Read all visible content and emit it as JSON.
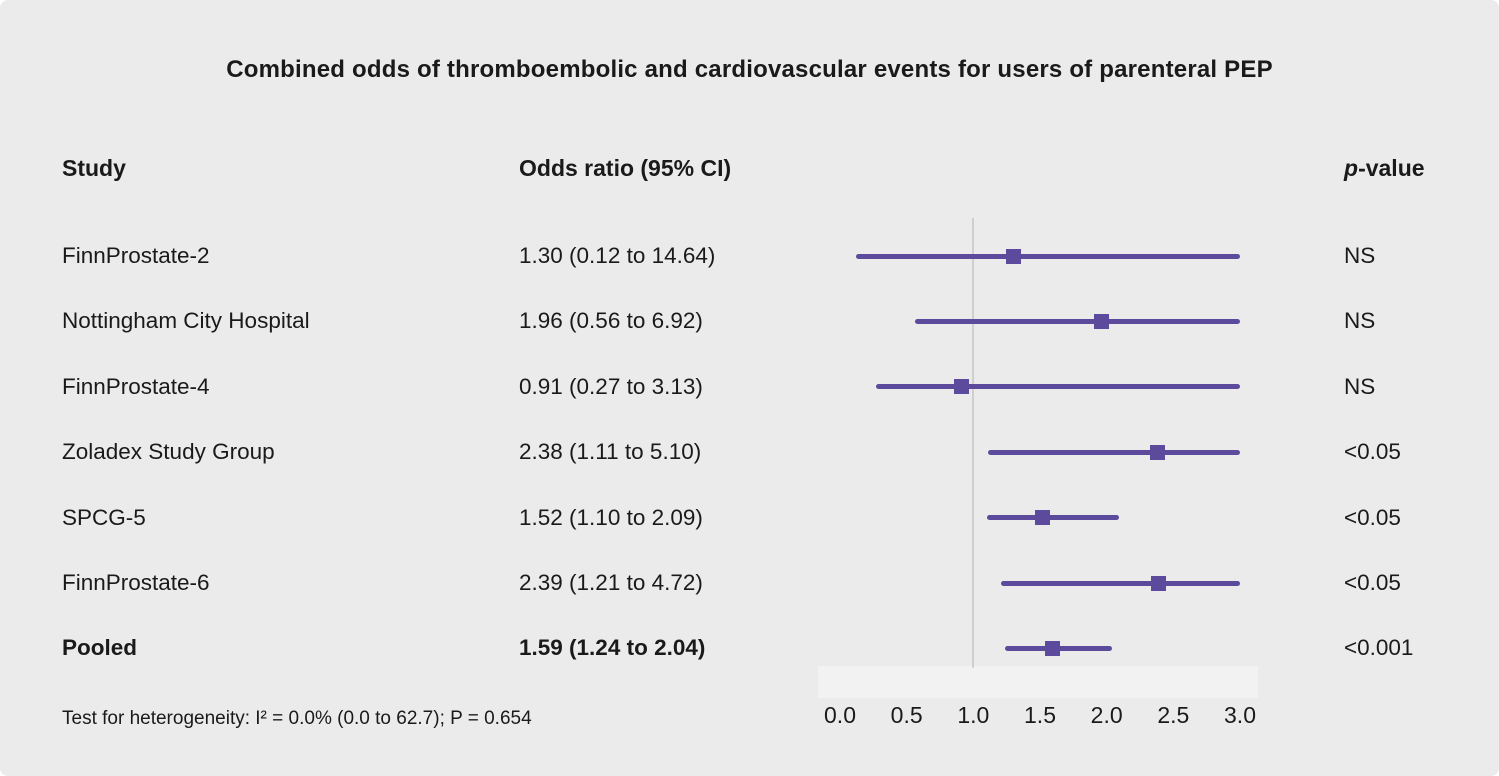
{
  "title": "Combined odds of thromboembolic and cardiovascular events for users of parenteral PEP",
  "columns": {
    "study": "Study",
    "odds_ratio": "Odds ratio (95% CI)",
    "p_italic": "p",
    "p_suffix": "-value"
  },
  "footer": "Test for heterogeneity: I² = 0.0% (0.0 to 62.7); P = 0.654",
  "colors": {
    "marker": "#5c4b9c",
    "ci_line": "#5c4b9c",
    "reference_line": "#cfcfcf",
    "background": "#ebebeb"
  },
  "chart_data": {
    "type": "forest",
    "title": "Combined odds of thromboembolic and cardiovascular events for users of parenteral PEP",
    "xlim": [
      0,
      3
    ],
    "reference_line": 1.0,
    "tick_labels": [
      "0.0",
      "0.5",
      "1.0",
      "1.5",
      "2.0",
      "2.5",
      "3.0"
    ],
    "rows": [
      {
        "study": "FinnProstate-2",
        "or_text": "1.30 (0.12 to 14.64)",
        "or": 1.3,
        "ci_low": 0.12,
        "ci_high": 14.64,
        "p": "NS",
        "bold": false
      },
      {
        "study": "Nottingham City Hospital",
        "or_text": "1.96 (0.56 to 6.92)",
        "or": 1.96,
        "ci_low": 0.56,
        "ci_high": 6.92,
        "p": "NS",
        "bold": false
      },
      {
        "study": "FinnProstate-4",
        "or_text": "0.91 (0.27 to 3.13)",
        "or": 0.91,
        "ci_low": 0.27,
        "ci_high": 3.13,
        "p": "NS",
        "bold": false
      },
      {
        "study": "Zoladex Study Group",
        "or_text": "2.38 (1.11 to 5.10)",
        "or": 2.38,
        "ci_low": 1.11,
        "ci_high": 5.1,
        "p": "<0.05",
        "bold": false
      },
      {
        "study": "SPCG-5",
        "or_text": "1.52 (1.10 to 2.09)",
        "or": 1.52,
        "ci_low": 1.1,
        "ci_high": 2.09,
        "p": "<0.05",
        "bold": false
      },
      {
        "study": "FinnProstate-6",
        "or_text": "2.39 (1.21 to 4.72)",
        "or": 2.39,
        "ci_low": 1.21,
        "ci_high": 4.72,
        "p": "<0.05",
        "bold": false
      },
      {
        "study": "Pooled",
        "or_text": "1.59 (1.24 to 2.04)",
        "or": 1.59,
        "ci_low": 1.24,
        "ci_high": 2.04,
        "p": "<0.001",
        "bold": true
      }
    ]
  }
}
